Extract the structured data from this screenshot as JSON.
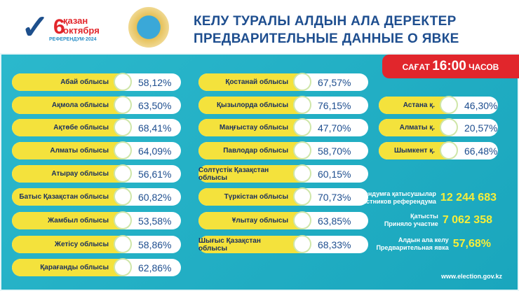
{
  "logo": {
    "day": "6",
    "line1": "қазан",
    "line2": "октября",
    "line3": "РЕФЕРЕНДУМ·2024"
  },
  "header": {
    "title_kk": "КЕЛУ ТУРАЛЫ АЛДЫН АЛА ДЕРЕКТЕР",
    "title_ru": "ПРЕДВАРИТЕЛЬНЫЕ ДАННЫЕ О ЯВКЕ"
  },
  "time_badge": {
    "kk": "САҒАТ",
    "time": "16:00",
    "ru": "ЧАСОВ",
    "color": "#e1262c"
  },
  "left": [
    {
      "name": "Абай облысы",
      "pct": "58,12%"
    },
    {
      "name": "Ақмола облысы",
      "pct": "63,50%"
    },
    {
      "name": "Ақтөбе облысы",
      "pct": "68,41%"
    },
    {
      "name": "Алматы облысы",
      "pct": "64,09%"
    },
    {
      "name": "Атырау облысы",
      "pct": "56,61%"
    },
    {
      "name": "Батыс Қазақстан облысы",
      "pct": "60,82%"
    },
    {
      "name": "Жамбыл облысы",
      "pct": "53,58%"
    },
    {
      "name": "Жетісу облысы",
      "pct": "58,86%"
    },
    {
      "name": "Қарағанды облысы",
      "pct": "62,86%"
    }
  ],
  "middle": [
    {
      "name": "Қостанай облысы",
      "pct": "67,57%"
    },
    {
      "name": "Қызылорда облысы",
      "pct": "76,15%"
    },
    {
      "name": "Маңғыстау облысы",
      "pct": "47,70%"
    },
    {
      "name": "Павлодар облысы",
      "pct": "58,70%"
    },
    {
      "name": "Солтүстік Қазақстан облысы",
      "pct": "60,15%"
    },
    {
      "name": "Түркістан облысы",
      "pct": "70,73%"
    },
    {
      "name": "Ұлытау облысы",
      "pct": "63,85%"
    },
    {
      "name": "Шығыс Қазақстан облысы",
      "pct": "68,33%"
    }
  ],
  "cities": [
    {
      "name": "Астана қ.",
      "pct": "46,30%"
    },
    {
      "name": "Алматы қ.",
      "pct": "20,57%"
    },
    {
      "name": "Шымкент қ.",
      "pct": "66,48%"
    }
  ],
  "stats": [
    {
      "kk": "Референдумға қатысушылар",
      "ru": "Участников референдума",
      "value": "12 244 683"
    },
    {
      "kk": "Қатысты",
      "ru": "Приняло участие",
      "value": "7 062 358"
    },
    {
      "kk": "Алдын ала келу",
      "ru": "Предварительная явка",
      "value": "57,68%"
    }
  ],
  "url": "www.election.gov.kz"
}
